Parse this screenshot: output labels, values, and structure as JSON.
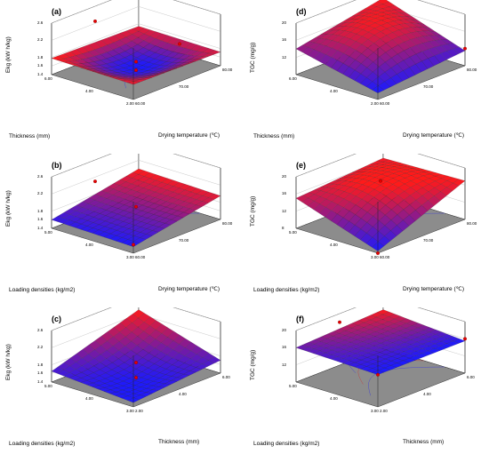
{
  "figure": {
    "colors": {
      "surface_low": "#1a1aff",
      "surface_high": "#ff1a1a",
      "floor": "#8c8c8c",
      "wall": "#ffffff"
    }
  },
  "chart_data": [
    {
      "type": "surface",
      "panel": "(a)",
      "zlabel": "Ekg (kW h/kg)",
      "xlabel": "Drying temperature (℃)",
      "ylabel": "Thickness (mm)",
      "x_ticks": [
        "60.00",
        "70.00",
        "80.00"
      ],
      "y_ticks": [
        "2.00",
        "4.00",
        "6.00"
      ],
      "z_ticks": [
        "1.4",
        "1.6",
        "1.8",
        "2.2",
        "2.6"
      ],
      "xlim": [
        60,
        80
      ],
      "ylim": [
        2,
        6
      ],
      "zlim": [
        1.4,
        2.6
      ],
      "corner_values": {
        "x60_y2": 1.75,
        "x80_y2": 1.72,
        "x60_y6": 1.78,
        "x80_y6": 1.74,
        "center": 1.45
      },
      "design_points": [
        {
          "x": 70,
          "y": 4,
          "z": 1.6
        },
        {
          "x": 70,
          "y": 6,
          "z": 2.25
        },
        {
          "x": 80,
          "y": 4,
          "z": 1.62
        },
        {
          "x": 70,
          "y": 4,
          "z": 1.2
        }
      ]
    },
    {
      "type": "surface",
      "panel": "(d)",
      "zlabel": "TGC (mg/g)",
      "xlabel": "Drying temperature (℃)",
      "ylabel": "Thickness (mm)",
      "x_ticks": [
        "60.00",
        "70.00",
        "80.00"
      ],
      "y_ticks": [
        "2.00",
        "4.00",
        "6.00"
      ],
      "z_ticks": [
        "12",
        "16",
        "20"
      ],
      "xlim": [
        60,
        80
      ],
      "ylim": [
        2,
        6
      ],
      "zlim": [
        8,
        20
      ],
      "corner_values": {
        "x60_y2": 9.5,
        "x80_y2": 11.5,
        "x60_y6": 14.0,
        "x80_y6": 18.0,
        "center": 17.0
      },
      "design_points": [
        {
          "x": 80,
          "y": 2,
          "z": 12.0
        }
      ]
    },
    {
      "type": "surface",
      "panel": "(b)",
      "zlabel": "Ekg (kW h/kg)",
      "xlabel": "Drying temperature (℃)",
      "ylabel": "Loading densities (kg/m2)",
      "x_ticks": [
        "60.00",
        "70.00",
        "80.00"
      ],
      "y_ticks": [
        "3.00",
        "4.00",
        "5.00"
      ],
      "z_ticks": [
        "1.4",
        "1.6",
        "1.8",
        "2.2",
        "2.6"
      ],
      "xlim": [
        60,
        80
      ],
      "ylim": [
        3,
        5
      ],
      "zlim": [
        1.4,
        2.6
      ],
      "corner_values": {
        "x60_y3": 1.55,
        "x80_y3": 1.95,
        "x60_y5": 1.6,
        "x80_y5": 2.0,
        "center": 1.75
      },
      "design_points": [
        {
          "x": 60,
          "y": 3,
          "z": 1.6
        },
        {
          "x": 70,
          "y": 4,
          "z": 1.8
        },
        {
          "x": 70,
          "y": 5,
          "z": 2.1
        }
      ]
    },
    {
      "type": "surface",
      "panel": "(e)",
      "zlabel": "TGC (mg/g)",
      "xlabel": "Drying temperature (℃)",
      "ylabel": "Loading densities (kg/m2)",
      "x_ticks": [
        "60.00",
        "70.00",
        "80.00"
      ],
      "y_ticks": [
        "3.00",
        "4.00",
        "5.00"
      ],
      "z_ticks": [
        "8",
        "12",
        "16",
        "20"
      ],
      "xlim": [
        60,
        80
      ],
      "ylim": [
        3,
        5
      ],
      "zlim": [
        8,
        20
      ],
      "corner_values": {
        "x60_y3": 8.5,
        "x80_y3": 17.0,
        "x60_y5": 15.0,
        "x80_y5": 16.5,
        "center": 17.0
      },
      "design_points": [
        {
          "x": 70,
          "y": 4,
          "z": 18.0
        },
        {
          "x": 60,
          "y": 3,
          "z": 8.0
        }
      ]
    },
    {
      "type": "surface",
      "panel": "(c)",
      "zlabel": "Ekg (kW h/kg)",
      "xlabel": "Thickness (mm)",
      "ylabel": "Loading densities (kg/m2)",
      "x_ticks": [
        "2.00",
        "4.00",
        "6.00"
      ],
      "y_ticks": [
        "3.00",
        "4.00",
        "5.00"
      ],
      "z_ticks": [
        "1.4",
        "1.6",
        "1.8",
        "2.2",
        "2.6"
      ],
      "xlim": [
        2,
        6
      ],
      "ylim": [
        3,
        5
      ],
      "zlim": [
        1.4,
        2.6
      ],
      "corner_values": {
        "x2_y3": 1.5,
        "x6_y3": 1.7,
        "x2_y5": 1.65,
        "x6_y5": 2.3,
        "center": 1.6
      },
      "design_points": [
        {
          "x": 6,
          "y": 5,
          "z": 2.4
        },
        {
          "x": 4,
          "y": 4,
          "z": 1.75
        },
        {
          "x": 4,
          "y": 4,
          "z": 1.3
        }
      ]
    },
    {
      "type": "surface",
      "panel": "(f)",
      "zlabel": "TGC (mg/g)",
      "xlabel": "Thickness (mm)",
      "ylabel": "Loading densities (kg/m2)",
      "x_ticks": [
        "2.00",
        "4.00",
        "6.00"
      ],
      "y_ticks": [
        "3.00",
        "4.00",
        "5.00"
      ],
      "z_ticks": [
        "12",
        "16",
        "20"
      ],
      "xlim": [
        2,
        6
      ],
      "ylim": [
        3,
        5
      ],
      "zlim": [
        8,
        20
      ],
      "corner_values": {
        "x2_y3": 15.5,
        "x6_y3": 15.5,
        "x2_y5": 16.0,
        "x6_y5": 17.0,
        "center": 16.0
      },
      "design_points": [
        {
          "x": 4,
          "y": 5,
          "z": 18.0
        },
        {
          "x": 2,
          "y": 3,
          "z": 15.5
        },
        {
          "x": 6,
          "y": 3,
          "z": 16.0
        }
      ]
    }
  ]
}
